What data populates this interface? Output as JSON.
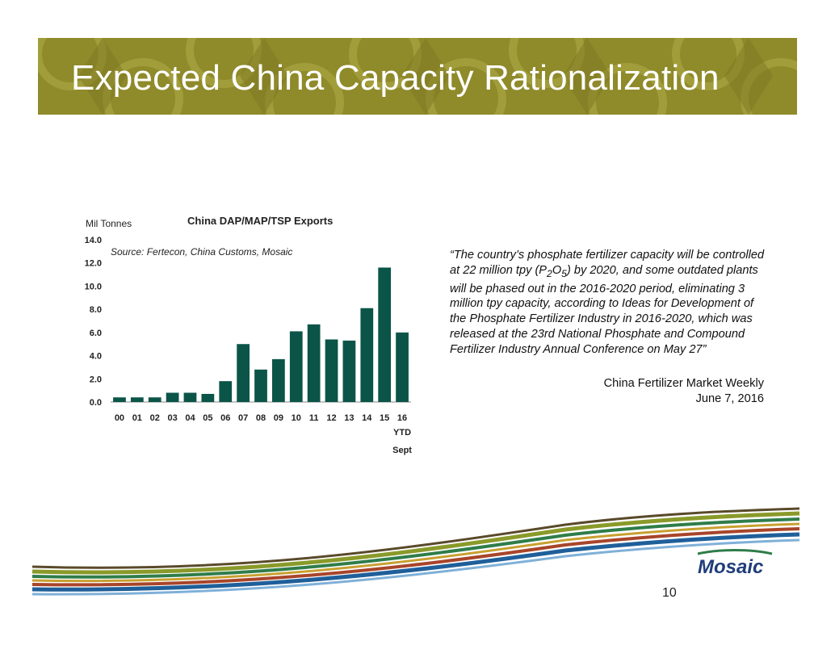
{
  "slide": {
    "title": "Expected China Capacity Rationalization",
    "page_number": "10",
    "logo_text": "Mosaic"
  },
  "colors": {
    "banner": "#8f8a2a",
    "bar": "#0b5548"
  },
  "quote": {
    "part1": "“The country’s phosphate fertilizer capacity will be controlled at 22 million tpy (P",
    "sub1": "2",
    "part2": "O",
    "sub2": "5",
    "part3": ") by 2020, and some outdated plants will be phased out in the 2016-2020 period, eliminating 3 million tpy capacity, according to Ideas for Development of the Phosphate Fertilizer Industry in 2016-2020, which was released at the 23rd National Phosphate and Compound Fertilizer Industry Annual Conference on May 27”",
    "citation_line1": "China Fertilizer Market Weekly",
    "citation_line2": "June 7, 2016"
  },
  "chart_data": {
    "type": "bar",
    "title": "China DAP/MAP/TSP Exports",
    "ylabel": "Mil Tonnes",
    "source": "Source: Fertecon, China Customs, Mosaic",
    "categories": [
      "00",
      "01",
      "02",
      "03",
      "04",
      "05",
      "06",
      "07",
      "08",
      "09",
      "10",
      "11",
      "12",
      "13",
      "14",
      "15",
      "16"
    ],
    "last_category_sublabels": [
      "YTD",
      "Sept"
    ],
    "values": [
      0.4,
      0.4,
      0.4,
      0.8,
      0.8,
      0.7,
      1.8,
      5.0,
      2.8,
      3.7,
      6.1,
      6.7,
      5.4,
      5.3,
      8.1,
      11.6,
      6.0
    ],
    "ylim": [
      0,
      14
    ],
    "yticks": [
      "0.0",
      "2.0",
      "4.0",
      "6.0",
      "8.0",
      "10.0",
      "12.0",
      "14.0"
    ],
    "grid": false
  }
}
